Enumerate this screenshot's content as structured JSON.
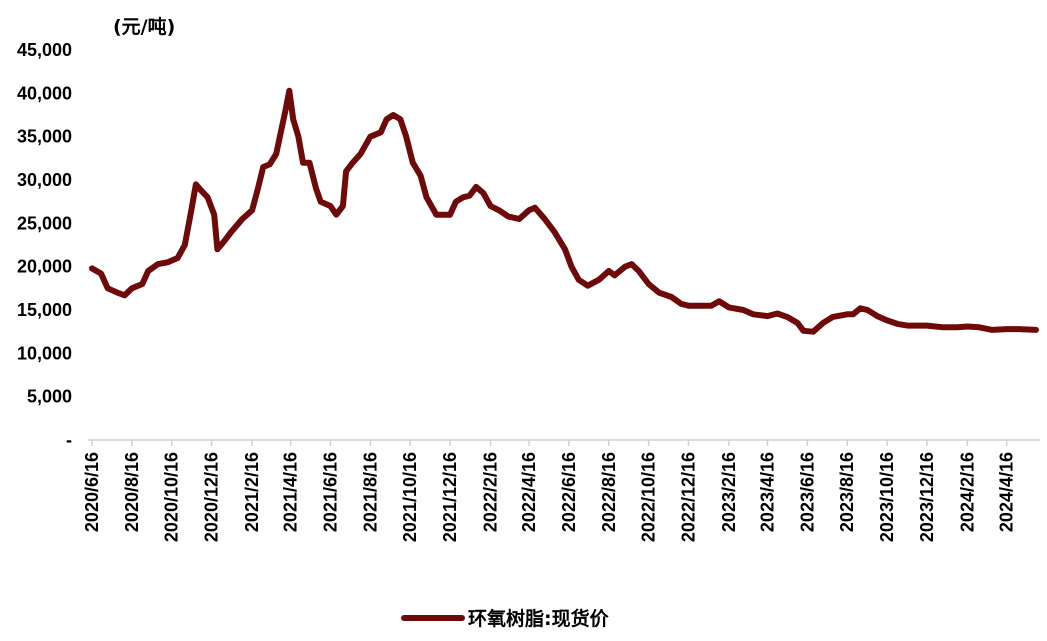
{
  "chart_data": {
    "type": "line",
    "unit_label": "(元/吨)",
    "y_tick_labels": [
      "-",
      "5,000",
      "10,000",
      "15,000",
      "20,000",
      "25,000",
      "30,000",
      "35,000",
      "40,000",
      "45,000"
    ],
    "y_tick_values": [
      0,
      5000,
      10000,
      15000,
      20000,
      25000,
      30000,
      35000,
      40000,
      45000
    ],
    "ylim": [
      0,
      45000
    ],
    "x_tick_labels": [
      "2020/6/16",
      "2020/8/16",
      "2020/10/16",
      "2020/12/16",
      "2021/2/16",
      "2021/4/16",
      "2021/6/16",
      "2021/8/16",
      "2021/10/16",
      "2021/12/16",
      "2022/2/16",
      "2022/4/16",
      "2022/6/16",
      "2022/8/16",
      "2022/10/16",
      "2022/12/16",
      "2023/2/16",
      "2023/4/16",
      "2023/6/16",
      "2023/8/16",
      "2023/10/16",
      "2023/12/16",
      "2024/2/16",
      "2024/4/16"
    ],
    "xlim": [
      "2020/6/16",
      "2024/5/31"
    ],
    "grid": false,
    "legend_position": "bottom",
    "series": [
      {
        "name": "环氧树脂:现货价",
        "color": "#6e0a0a",
        "points": [
          [
            "2020/6/16",
            19800
          ],
          [
            "2020/6/30",
            19200
          ],
          [
            "2020/7/10",
            17500
          ],
          [
            "2020/7/25",
            17000
          ],
          [
            "2020/8/5",
            16700
          ],
          [
            "2020/8/16",
            17500
          ],
          [
            "2020/9/1",
            18000
          ],
          [
            "2020/9/10",
            19500
          ],
          [
            "2020/9/25",
            20300
          ],
          [
            "2020/10/10",
            20500
          ],
          [
            "2020/10/25",
            21000
          ],
          [
            "2020/11/5",
            22500
          ],
          [
            "2020/11/15",
            26500
          ],
          [
            "2020/11/22",
            29500
          ],
          [
            "2020/11/30",
            28800
          ],
          [
            "2020/12/10",
            28000
          ],
          [
            "2020/12/20",
            26000
          ],
          [
            "2020/12/25",
            22000
          ],
          [
            "2021/1/5",
            23000
          ],
          [
            "2021/1/15",
            24000
          ],
          [
            "2021/2/1",
            25500
          ],
          [
            "2021/2/16",
            26500
          ],
          [
            "2021/2/25",
            29000
          ],
          [
            "2021/3/5",
            31500
          ],
          [
            "2021/3/15",
            31800
          ],
          [
            "2021/3/25",
            33000
          ],
          [
            "2021/4/1",
            35500
          ],
          [
            "2021/4/8",
            38000
          ],
          [
            "2021/4/14",
            40300
          ],
          [
            "2021/4/20",
            37000
          ],
          [
            "2021/4/28",
            35000
          ],
          [
            "2021/5/5",
            32000
          ],
          [
            "2021/5/15",
            32000
          ],
          [
            "2021/5/25",
            29000
          ],
          [
            "2021/6/1",
            27500
          ],
          [
            "2021/6/16",
            27000
          ],
          [
            "2021/6/25",
            26000
          ],
          [
            "2021/7/5",
            27000
          ],
          [
            "2021/7/10",
            31000
          ],
          [
            "2021/7/20",
            32000
          ],
          [
            "2021/8/1",
            33000
          ],
          [
            "2021/8/16",
            35000
          ],
          [
            "2021/9/1",
            35500
          ],
          [
            "2021/9/10",
            37000
          ],
          [
            "2021/9/20",
            37500
          ],
          [
            "2021/10/1",
            37000
          ],
          [
            "2021/10/10",
            35000
          ],
          [
            "2021/10/20",
            32000
          ],
          [
            "2021/11/1",
            30500
          ],
          [
            "2021/11/10",
            28000
          ],
          [
            "2021/11/25",
            26000
          ],
          [
            "2021/12/16",
            26000
          ],
          [
            "2021/12/25",
            27500
          ],
          [
            "2022/1/5",
            28000
          ],
          [
            "2022/1/15",
            28200
          ],
          [
            "2022/1/25",
            29200
          ],
          [
            "2022/2/5",
            28500
          ],
          [
            "2022/2/16",
            27000
          ],
          [
            "2022/3/1",
            26500
          ],
          [
            "2022/3/15",
            25800
          ],
          [
            "2022/4/1",
            25500
          ],
          [
            "2022/4/16",
            26500
          ],
          [
            "2022/4/25",
            26800
          ],
          [
            "2022/5/10",
            25500
          ],
          [
            "2022/5/25",
            24000
          ],
          [
            "2022/6/10",
            22000
          ],
          [
            "2022/6/20",
            20000
          ],
          [
            "2022/7/1",
            18500
          ],
          [
            "2022/7/15",
            17800
          ],
          [
            "2022/8/1",
            18500
          ],
          [
            "2022/8/16",
            19500
          ],
          [
            "2022/8/25",
            19000
          ],
          [
            "2022/9/10",
            20000
          ],
          [
            "2022/9/20",
            20300
          ],
          [
            "2022/10/1",
            19500
          ],
          [
            "2022/10/16",
            18000
          ],
          [
            "2022/11/1",
            17000
          ],
          [
            "2022/11/20",
            16500
          ],
          [
            "2022/12/5",
            15700
          ],
          [
            "2022/12/16",
            15500
          ],
          [
            "2023/1/5",
            15500
          ],
          [
            "2023/1/20",
            15500
          ],
          [
            "2023/2/1",
            16000
          ],
          [
            "2023/2/16",
            15300
          ],
          [
            "2023/3/10",
            15000
          ],
          [
            "2023/3/25",
            14500
          ],
          [
            "2023/4/16",
            14300
          ],
          [
            "2023/5/1",
            14600
          ],
          [
            "2023/5/16",
            14200
          ],
          [
            "2023/6/1",
            13500
          ],
          [
            "2023/6/10",
            12600
          ],
          [
            "2023/6/25",
            12500
          ],
          [
            "2023/7/10",
            13500
          ],
          [
            "2023/7/25",
            14200
          ],
          [
            "2023/8/16",
            14500
          ],
          [
            "2023/8/25",
            14500
          ],
          [
            "2023/9/5",
            15200
          ],
          [
            "2023/9/16",
            15000
          ],
          [
            "2023/10/1",
            14300
          ],
          [
            "2023/10/16",
            13800
          ],
          [
            "2023/11/1",
            13400
          ],
          [
            "2023/11/16",
            13200
          ],
          [
            "2023/12/16",
            13200
          ],
          [
            "2024/1/10",
            13000
          ],
          [
            "2024/2/1",
            13000
          ],
          [
            "2024/2/16",
            13100
          ],
          [
            "2024/3/5",
            13000
          ],
          [
            "2024/3/25",
            12700
          ],
          [
            "2024/4/16",
            12800
          ],
          [
            "2024/5/5",
            12800
          ],
          [
            "2024/5/31",
            12700
          ]
        ]
      }
    ]
  }
}
